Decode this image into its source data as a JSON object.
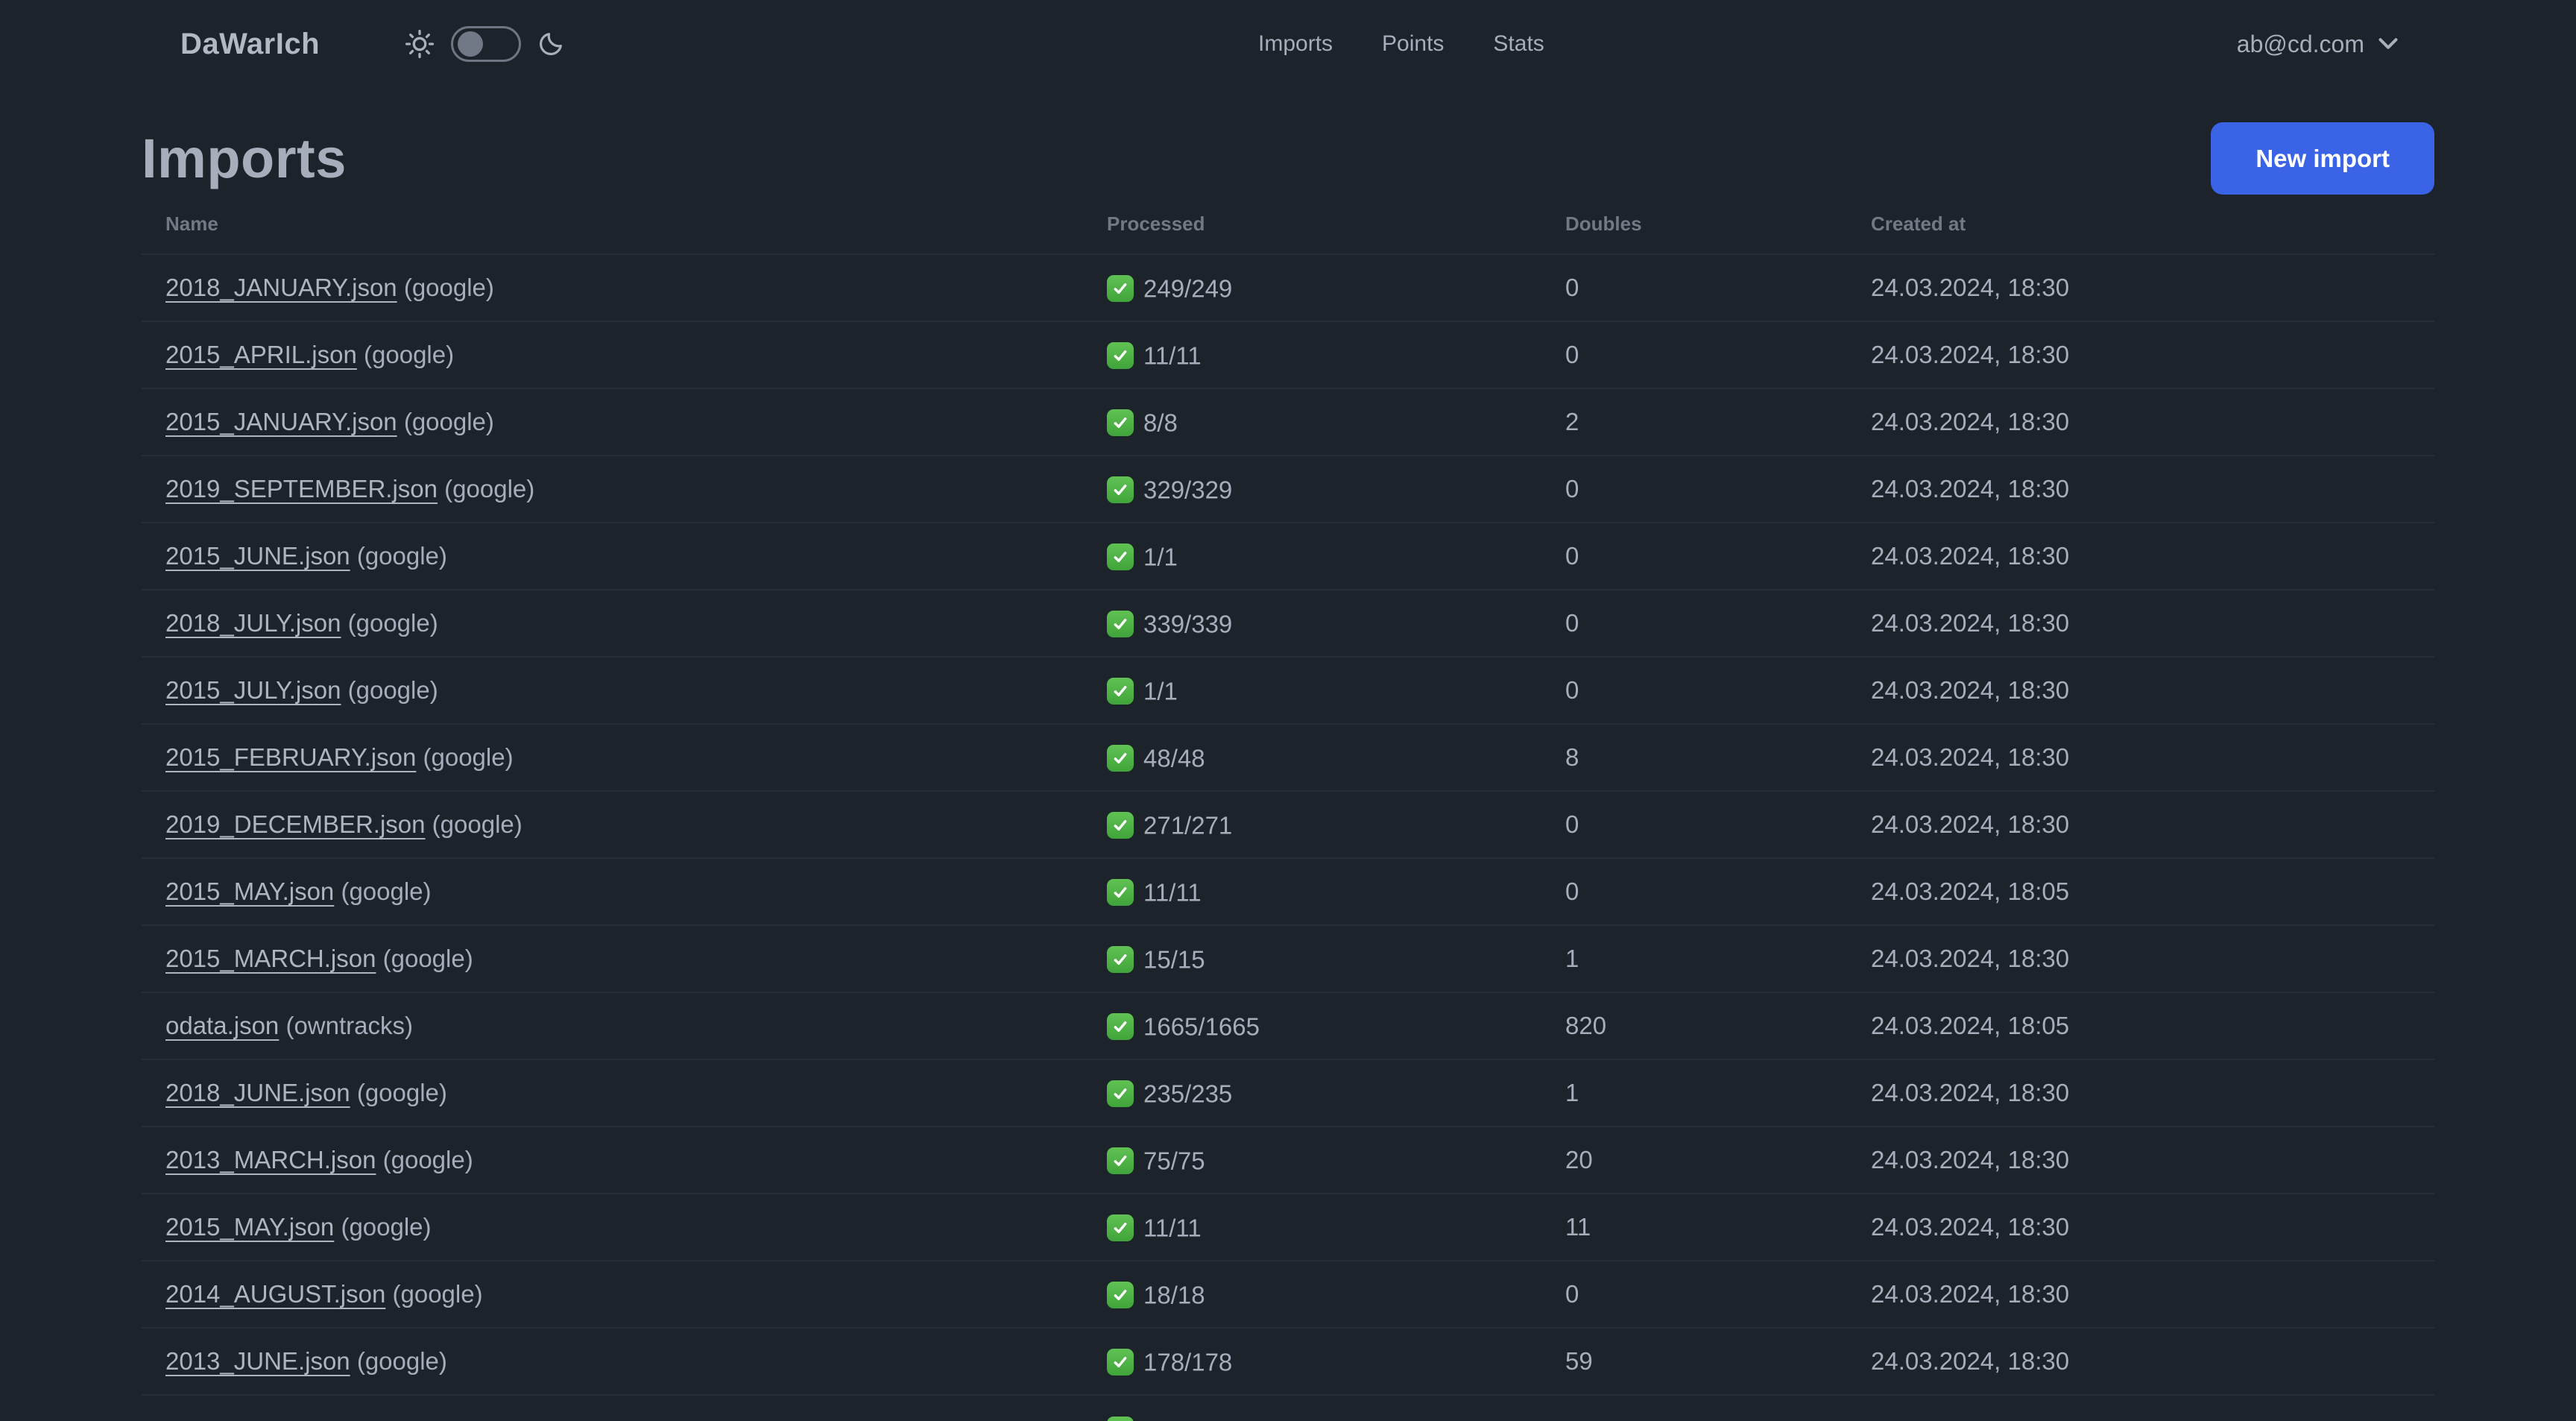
{
  "navbar": {
    "logo": "DaWarIch",
    "theme_toggle": {
      "state": "off"
    },
    "links": [
      "Imports",
      "Points",
      "Stats"
    ],
    "account_email": "ab@cd.com"
  },
  "page": {
    "title": "Imports",
    "new_import_button": "New import"
  },
  "table": {
    "headers": [
      "Name",
      "Processed",
      "Doubles",
      "Created at"
    ],
    "rows": [
      {
        "name": "2018_JANUARY.json",
        "source": "google",
        "processed": "249/249",
        "doubles": "0",
        "created_at": "24.03.2024, 18:30"
      },
      {
        "name": "2015_APRIL.json",
        "source": "google",
        "processed": "11/11",
        "doubles": "0",
        "created_at": "24.03.2024, 18:30"
      },
      {
        "name": "2015_JANUARY.json",
        "source": "google",
        "processed": "8/8",
        "doubles": "2",
        "created_at": "24.03.2024, 18:30"
      },
      {
        "name": "2019_SEPTEMBER.json",
        "source": "google",
        "processed": "329/329",
        "doubles": "0",
        "created_at": "24.03.2024, 18:30"
      },
      {
        "name": "2015_JUNE.json",
        "source": "google",
        "processed": "1/1",
        "doubles": "0",
        "created_at": "24.03.2024, 18:30"
      },
      {
        "name": "2018_JULY.json",
        "source": "google",
        "processed": "339/339",
        "doubles": "0",
        "created_at": "24.03.2024, 18:30"
      },
      {
        "name": "2015_JULY.json",
        "source": "google",
        "processed": "1/1",
        "doubles": "0",
        "created_at": "24.03.2024, 18:30"
      },
      {
        "name": "2015_FEBRUARY.json",
        "source": "google",
        "processed": "48/48",
        "doubles": "8",
        "created_at": "24.03.2024, 18:30"
      },
      {
        "name": "2019_DECEMBER.json",
        "source": "google",
        "processed": "271/271",
        "doubles": "0",
        "created_at": "24.03.2024, 18:30"
      },
      {
        "name": "2015_MAY.json",
        "source": "google",
        "processed": "11/11",
        "doubles": "0",
        "created_at": "24.03.2024, 18:05"
      },
      {
        "name": "2015_MARCH.json",
        "source": "google",
        "processed": "15/15",
        "doubles": "1",
        "created_at": "24.03.2024, 18:30"
      },
      {
        "name": "odata.json",
        "source": "owntracks",
        "processed": "1665/1665",
        "doubles": "820",
        "created_at": "24.03.2024, 18:05"
      },
      {
        "name": "2018_JUNE.json",
        "source": "google",
        "processed": "235/235",
        "doubles": "1",
        "created_at": "24.03.2024, 18:30"
      },
      {
        "name": "2013_MARCH.json",
        "source": "google",
        "processed": "75/75",
        "doubles": "20",
        "created_at": "24.03.2024, 18:30"
      },
      {
        "name": "2015_MAY.json",
        "source": "google",
        "processed": "11/11",
        "doubles": "11",
        "created_at": "24.03.2024, 18:30"
      },
      {
        "name": "2014_AUGUST.json",
        "source": "google",
        "processed": "18/18",
        "doubles": "0",
        "created_at": "24.03.2024, 18:30"
      },
      {
        "name": "2013_JUNE.json",
        "source": "google",
        "processed": "178/178",
        "doubles": "59",
        "created_at": "24.03.2024, 18:30"
      }
    ],
    "partial_next_row": {
      "status_check_visible": true
    }
  },
  "colors": {
    "background": "#1d232a",
    "text": "#a6adbb",
    "muted_header": "#7b8494",
    "divider": "#272d36",
    "primary_button": "#3b63e6",
    "button_text": "#ffffff",
    "check_green": "#4fb847"
  }
}
